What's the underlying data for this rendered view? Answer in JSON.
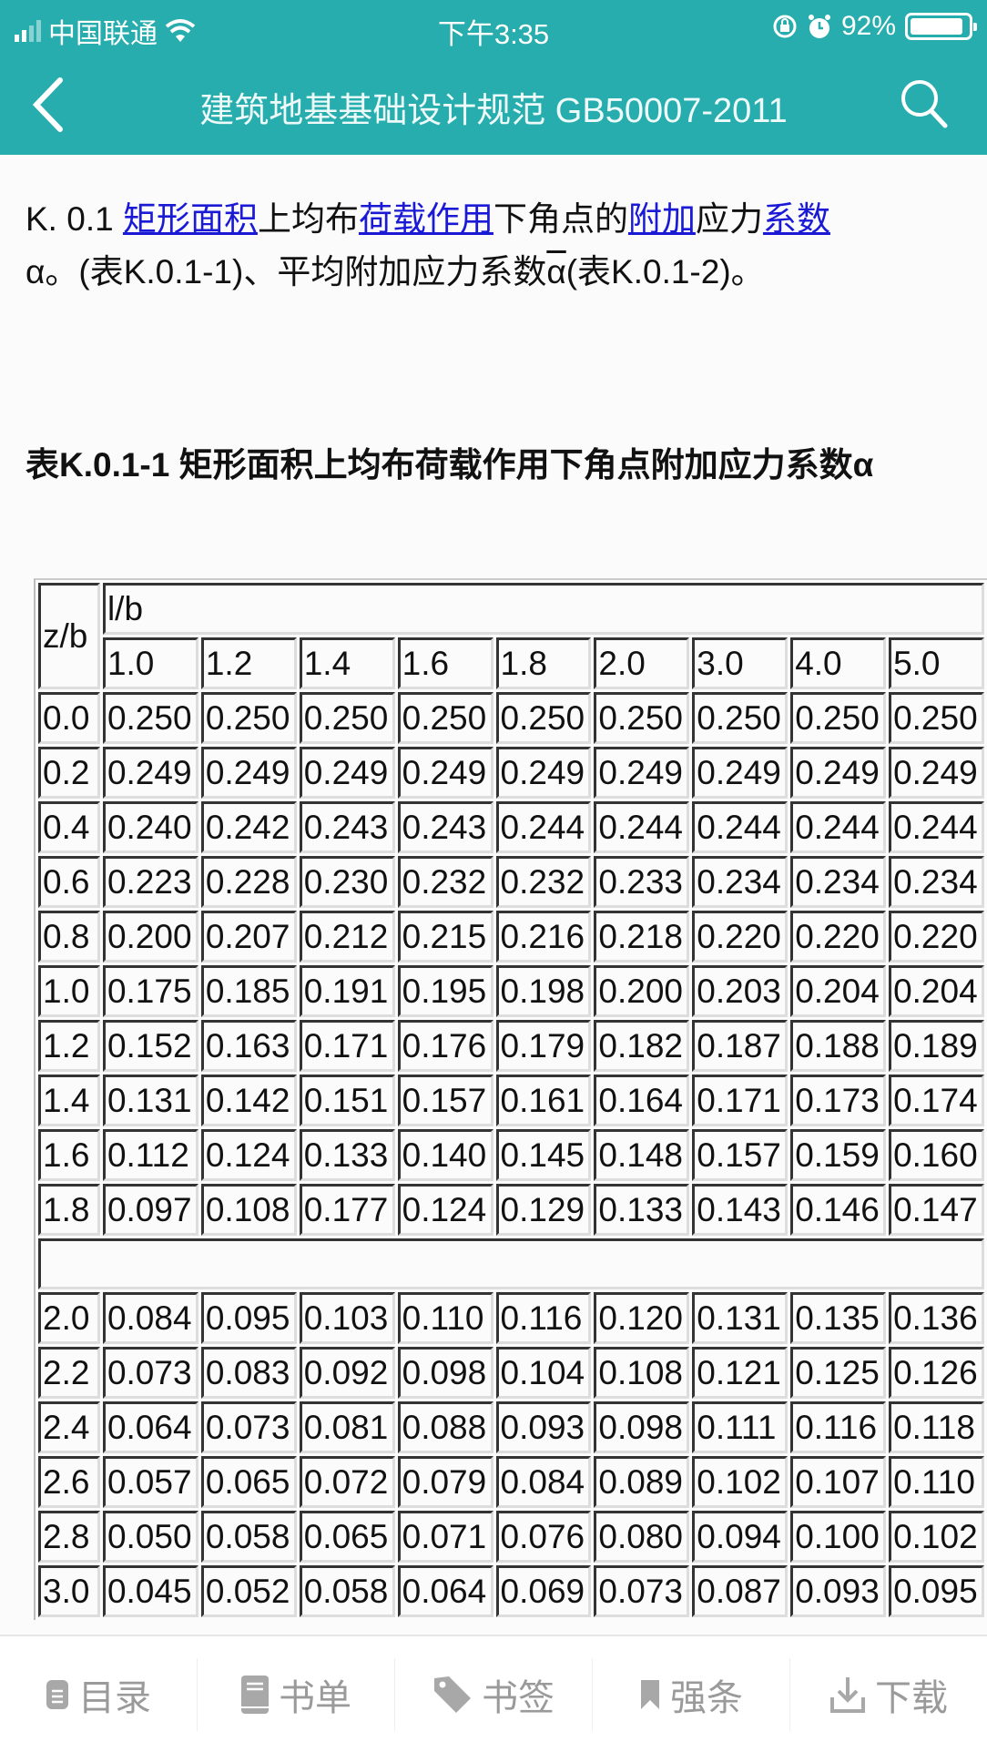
{
  "status_bar": {
    "carrier": "中国联通",
    "time": "下午3:35",
    "battery_percent": "92%",
    "battery_level": 0.92,
    "icons": [
      "signal-icon",
      "wifi-icon",
      "rotation-lock-icon",
      "alarm-icon",
      "battery-icon"
    ]
  },
  "nav": {
    "title": "建筑地基基础设计规范 GB50007-2011",
    "back_icon": "chevron-left-icon",
    "search_icon": "search-icon"
  },
  "colors": {
    "header": "#27adad",
    "link": "#1a1ad6",
    "tab_text": "#9a9a9a"
  },
  "paragraph": {
    "prefix": "K. 0.1 ",
    "link1": "矩形面积",
    "t1": "上均布",
    "link2": "荷载作用",
    "t2": "下角点的",
    "link3": "附加",
    "t3": "应力",
    "link4": "系数",
    "t4": "α。(表K.0.1-1)、平均附加应力系数",
    "alpha_bar": "α",
    "t5": "(表K.0.1-2)。"
  },
  "table_title": "表K.0.1-1 矩形面积上均布荷载作用下角点附加应力系数α",
  "table": {
    "row_header": "z/b",
    "col_group_header": "l/b",
    "columns": [
      "1.0",
      "1.2",
      "1.4",
      "1.6",
      "1.8",
      "2.0",
      "3.0",
      "4.0",
      "5.0"
    ],
    "rows_part1": [
      {
        "zb": "0.0",
        "values": [
          "0.250",
          "0.250",
          "0.250",
          "0.250",
          "0.250",
          "0.250",
          "0.250",
          "0.250",
          "0.250"
        ]
      },
      {
        "zb": "0.2",
        "values": [
          "0.249",
          "0.249",
          "0.249",
          "0.249",
          "0.249",
          "0.249",
          "0.249",
          "0.249",
          "0.249"
        ]
      },
      {
        "zb": "0.4",
        "values": [
          "0.240",
          "0.242",
          "0.243",
          "0.243",
          "0.244",
          "0.244",
          "0.244",
          "0.244",
          "0.244"
        ]
      },
      {
        "zb": "0.6",
        "values": [
          "0.223",
          "0.228",
          "0.230",
          "0.232",
          "0.232",
          "0.233",
          "0.234",
          "0.234",
          "0.234"
        ]
      },
      {
        "zb": "0.8",
        "values": [
          "0.200",
          "0.207",
          "0.212",
          "0.215",
          "0.216",
          "0.218",
          "0.220",
          "0.220",
          "0.220"
        ]
      },
      {
        "zb": "1.0",
        "values": [
          "0.175",
          "0.185",
          "0.191",
          "0.195",
          "0.198",
          "0.200",
          "0.203",
          "0.204",
          "0.204"
        ]
      },
      {
        "zb": "1.2",
        "values": [
          "0.152",
          "0.163",
          "0.171",
          "0.176",
          "0.179",
          "0.182",
          "0.187",
          "0.188",
          "0.189"
        ]
      },
      {
        "zb": "1.4",
        "values": [
          "0.131",
          "0.142",
          "0.151",
          "0.157",
          "0.161",
          "0.164",
          "0.171",
          "0.173",
          "0.174"
        ]
      },
      {
        "zb": "1.6",
        "values": [
          "0.112",
          "0.124",
          "0.133",
          "0.140",
          "0.145",
          "0.148",
          "0.157",
          "0.159",
          "0.160"
        ]
      },
      {
        "zb": "1.8",
        "values": [
          "0.097",
          "0.108",
          "0.177",
          "0.124",
          "0.129",
          "0.133",
          "0.143",
          "0.146",
          "0.147"
        ]
      }
    ],
    "rows_part2": [
      {
        "zb": "2.0",
        "values": [
          "0.084",
          "0.095",
          "0.103",
          "0.110",
          "0.116",
          "0.120",
          "0.131",
          "0.135",
          "0.136"
        ]
      },
      {
        "zb": "2.2",
        "values": [
          "0.073",
          "0.083",
          "0.092",
          "0.098",
          "0.104",
          "0.108",
          "0.121",
          "0.125",
          "0.126"
        ]
      },
      {
        "zb": "2.4",
        "values": [
          "0.064",
          "0.073",
          "0.081",
          "0.088",
          "0.093",
          "0.098",
          "0.111",
          "0.116",
          "0.118"
        ]
      },
      {
        "zb": "2.6",
        "values": [
          "0.057",
          "0.065",
          "0.072",
          "0.079",
          "0.084",
          "0.089",
          "0.102",
          "0.107",
          "0.110"
        ]
      },
      {
        "zb": "2.8",
        "values": [
          "0.050",
          "0.058",
          "0.065",
          "0.071",
          "0.076",
          "0.080",
          "0.094",
          "0.100",
          "0.102"
        ]
      },
      {
        "zb": "3.0",
        "values": [
          "0.045",
          "0.052",
          "0.058",
          "0.064",
          "0.069",
          "0.073",
          "0.087",
          "0.093",
          "0.095"
        ]
      }
    ]
  },
  "bottom_tabs": [
    {
      "label": "目录",
      "icon": "document-icon"
    },
    {
      "label": "书单",
      "icon": "book-icon"
    },
    {
      "label": "书签",
      "icon": "tag-icon"
    },
    {
      "label": "强条",
      "icon": "bookmark-icon"
    },
    {
      "label": "下载",
      "icon": "download-icon"
    }
  ]
}
